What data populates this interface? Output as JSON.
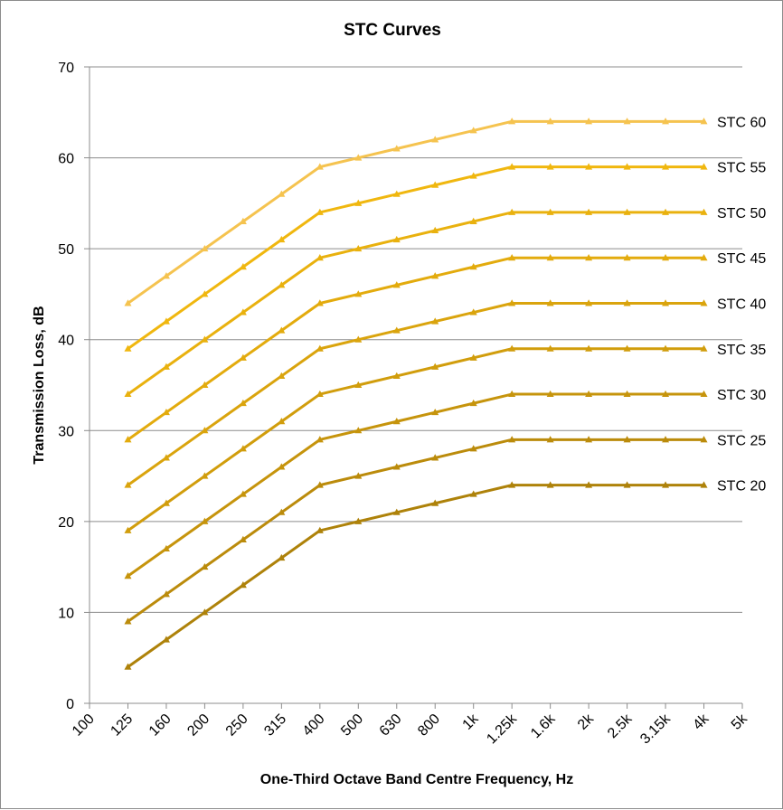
{
  "chart_data": {
    "type": "line",
    "title": "STC Curves",
    "xlabel": "One-Third Octave Band Centre Frequency, Hz",
    "ylabel": "Transmission Loss, dB",
    "categories": [
      "100",
      "125",
      "160",
      "200",
      "250",
      "315",
      "400",
      "500",
      "630",
      "800",
      "1k",
      "1.25k",
      "1.6k",
      "2k",
      "2.5k",
      "3.15k",
      "4k",
      "5k"
    ],
    "ylim": [
      0,
      70
    ],
    "yticks": [
      0,
      10,
      20,
      30,
      40,
      50,
      60,
      70
    ],
    "grid": "horizontal",
    "marker": "triangle",
    "series": [
      {
        "name": "STC 60",
        "color": "#f5c34f",
        "values": [
          null,
          44,
          47,
          50,
          53,
          56,
          59,
          60,
          61,
          62,
          63,
          64,
          64,
          64,
          64,
          64,
          64,
          null
        ]
      },
      {
        "name": "STC 55",
        "color": "#f0b70f",
        "values": [
          null,
          39,
          42,
          45,
          48,
          51,
          54,
          55,
          56,
          57,
          58,
          59,
          59,
          59,
          59,
          59,
          59,
          null
        ]
      },
      {
        "name": "STC 50",
        "color": "#e9b10e",
        "values": [
          null,
          34,
          37,
          40,
          43,
          46,
          49,
          50,
          51,
          52,
          53,
          54,
          54,
          54,
          54,
          54,
          54,
          null
        ]
      },
      {
        "name": "STC 45",
        "color": "#e3ab0d",
        "values": [
          null,
          29,
          32,
          35,
          38,
          41,
          44,
          45,
          46,
          47,
          48,
          49,
          49,
          49,
          49,
          49,
          49,
          null
        ]
      },
      {
        "name": "STC 40",
        "color": "#daa40d",
        "values": [
          null,
          24,
          27,
          30,
          33,
          36,
          39,
          40,
          41,
          42,
          43,
          44,
          44,
          44,
          44,
          44,
          44,
          null
        ]
      },
      {
        "name": "STC 35",
        "color": "#d19d0c",
        "values": [
          null,
          19,
          22,
          25,
          28,
          31,
          34,
          35,
          36,
          37,
          38,
          39,
          39,
          39,
          39,
          39,
          39,
          null
        ]
      },
      {
        "name": "STC 30",
        "color": "#c6940c",
        "values": [
          null,
          14,
          17,
          20,
          23,
          26,
          29,
          30,
          31,
          32,
          33,
          34,
          34,
          34,
          34,
          34,
          34,
          null
        ]
      },
      {
        "name": "STC 25",
        "color": "#bb8b0b",
        "values": [
          null,
          9,
          12,
          15,
          18,
          21,
          24,
          25,
          26,
          27,
          28,
          29,
          29,
          29,
          29,
          29,
          29,
          null
        ]
      },
      {
        "name": "STC 20",
        "color": "#ae820a",
        "values": [
          null,
          4,
          7,
          10,
          13,
          16,
          19,
          20,
          21,
          22,
          23,
          24,
          24,
          24,
          24,
          24,
          24,
          null
        ]
      }
    ]
  }
}
